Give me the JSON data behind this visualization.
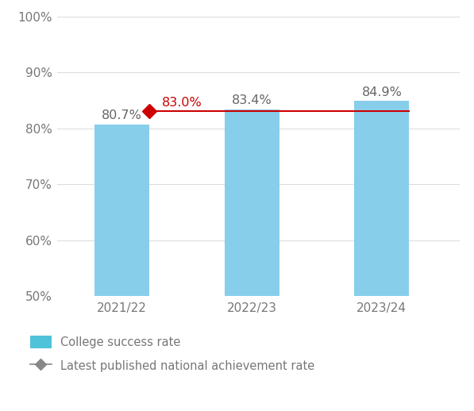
{
  "categories": [
    "2021/22",
    "2022/23",
    "2023/24"
  ],
  "values": [
    80.7,
    83.4,
    84.9
  ],
  "bar_colors": [
    "#87CEEB",
    "#87CEEB",
    "#87CEEB"
  ],
  "bar_label_color": "#666666",
  "national_rate": 83.0,
  "national_rate_label": "83.0%",
  "national_rate_color": "#CC0000",
  "national_line_color": "#CC0000",
  "ylim_min": 50,
  "ylim_max": 100,
  "yticks": [
    50,
    60,
    70,
    80,
    90,
    100
  ],
  "bar_value_labels": [
    "80.7%",
    "83.4%",
    "84.9%"
  ],
  "legend_bar_label": "College success rate",
  "legend_bar_color": "#4FC3D9",
  "legend_line_label": "Latest published national achievement rate",
  "legend_line_color": "#888888",
  "background_color": "#ffffff",
  "grid_color": "#dddddd",
  "bar_width": 0.42,
  "tick_label_color": "#777777",
  "tick_label_fontsize": 11
}
